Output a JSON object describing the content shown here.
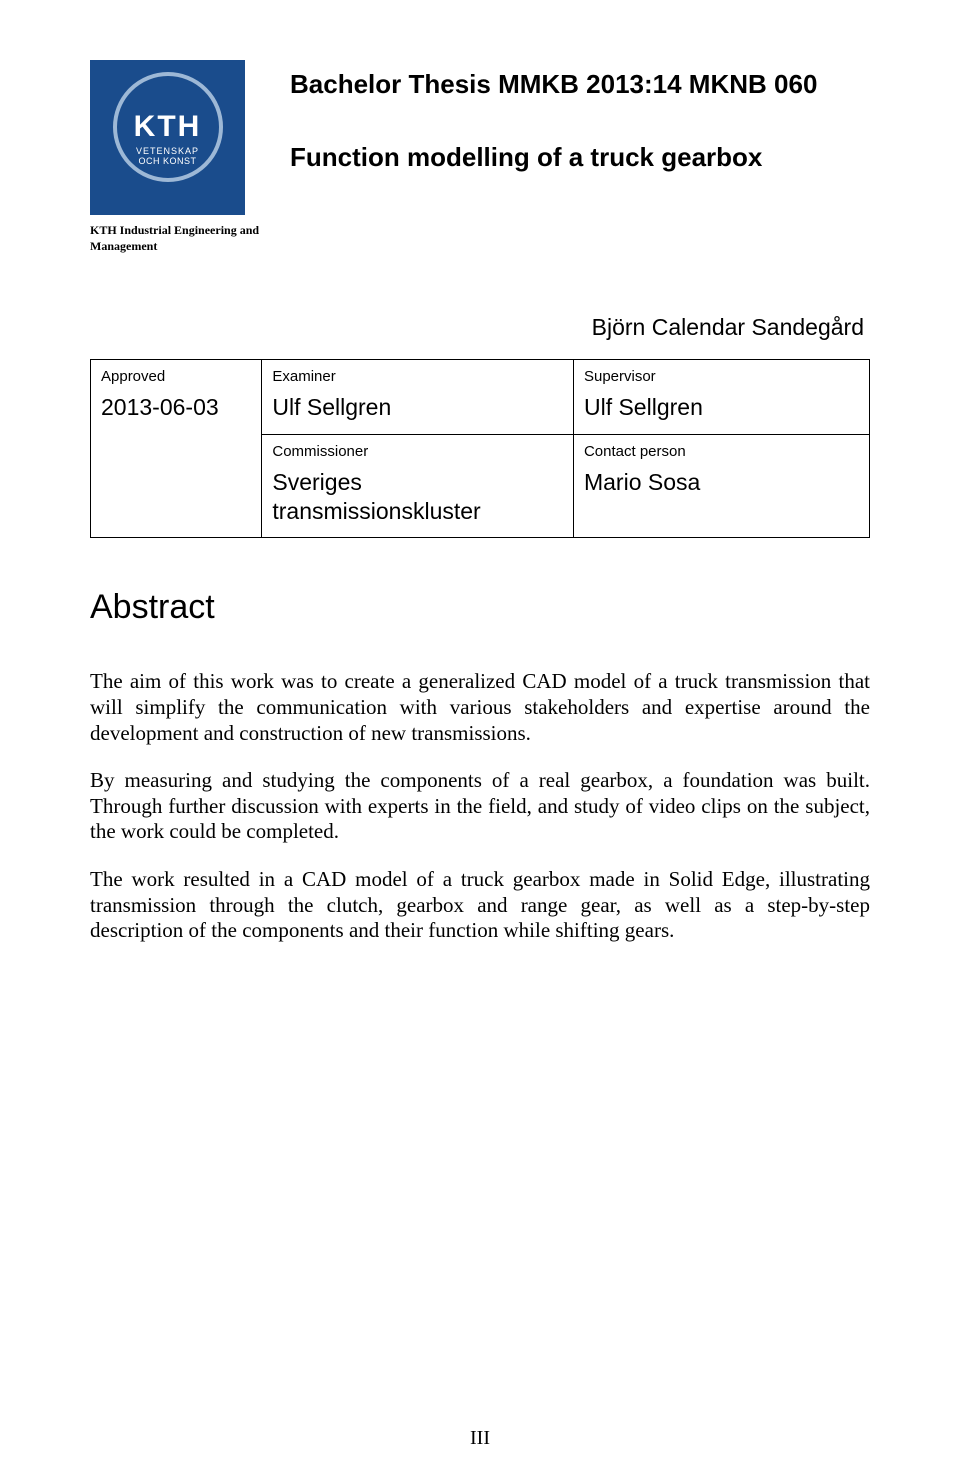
{
  "logo": {
    "kth_text": "KTH",
    "line1": "VETENSKAP",
    "line2": "OCH KONST",
    "caption": "KTH Industrial Engineering and Management",
    "bg_color": "#1a4c8c"
  },
  "header": {
    "code": "Bachelor Thesis MMKB 2013:14 MKNB 060",
    "title": "Function modelling of a truck gearbox",
    "author": "Björn Calendar Sandegård"
  },
  "info": {
    "approved_label": "Approved",
    "approved_val": "2013-06-03",
    "examiner_label": "Examiner",
    "examiner_val": "Ulf Sellgren",
    "supervisor_label": "Supervisor",
    "supervisor_val": "Ulf Sellgren",
    "commissioner_label": "Commissioner",
    "commissioner_val": "Sveriges transmissionskluster",
    "contact_label": "Contact person",
    "contact_val": "Mario Sosa"
  },
  "abstract": {
    "heading": "Abstract",
    "p1": "The aim of this work was to create a generalized CAD model of a truck transmission that will simplify the communication with various stakeholders and expertise around the development and construction of new transmissions.",
    "p2": "By measuring and studying the components of a real gearbox, a foundation was built. Through further discussion with experts in the field, and study of video clips on the subject, the work could be completed.",
    "p3": "The work resulted in a CAD model of a truck gearbox made in Solid Edge, illustrating transmission through the clutch, gearbox and range gear, as well as a step-by-step description of the components and their function while shifting gears."
  },
  "page_number": "III",
  "style": {
    "body_font": "Garamond",
    "title_fontsize_pt": 20,
    "body_fontsize_pt": 16,
    "table_border_color": "#000000",
    "background_color": "#ffffff"
  }
}
